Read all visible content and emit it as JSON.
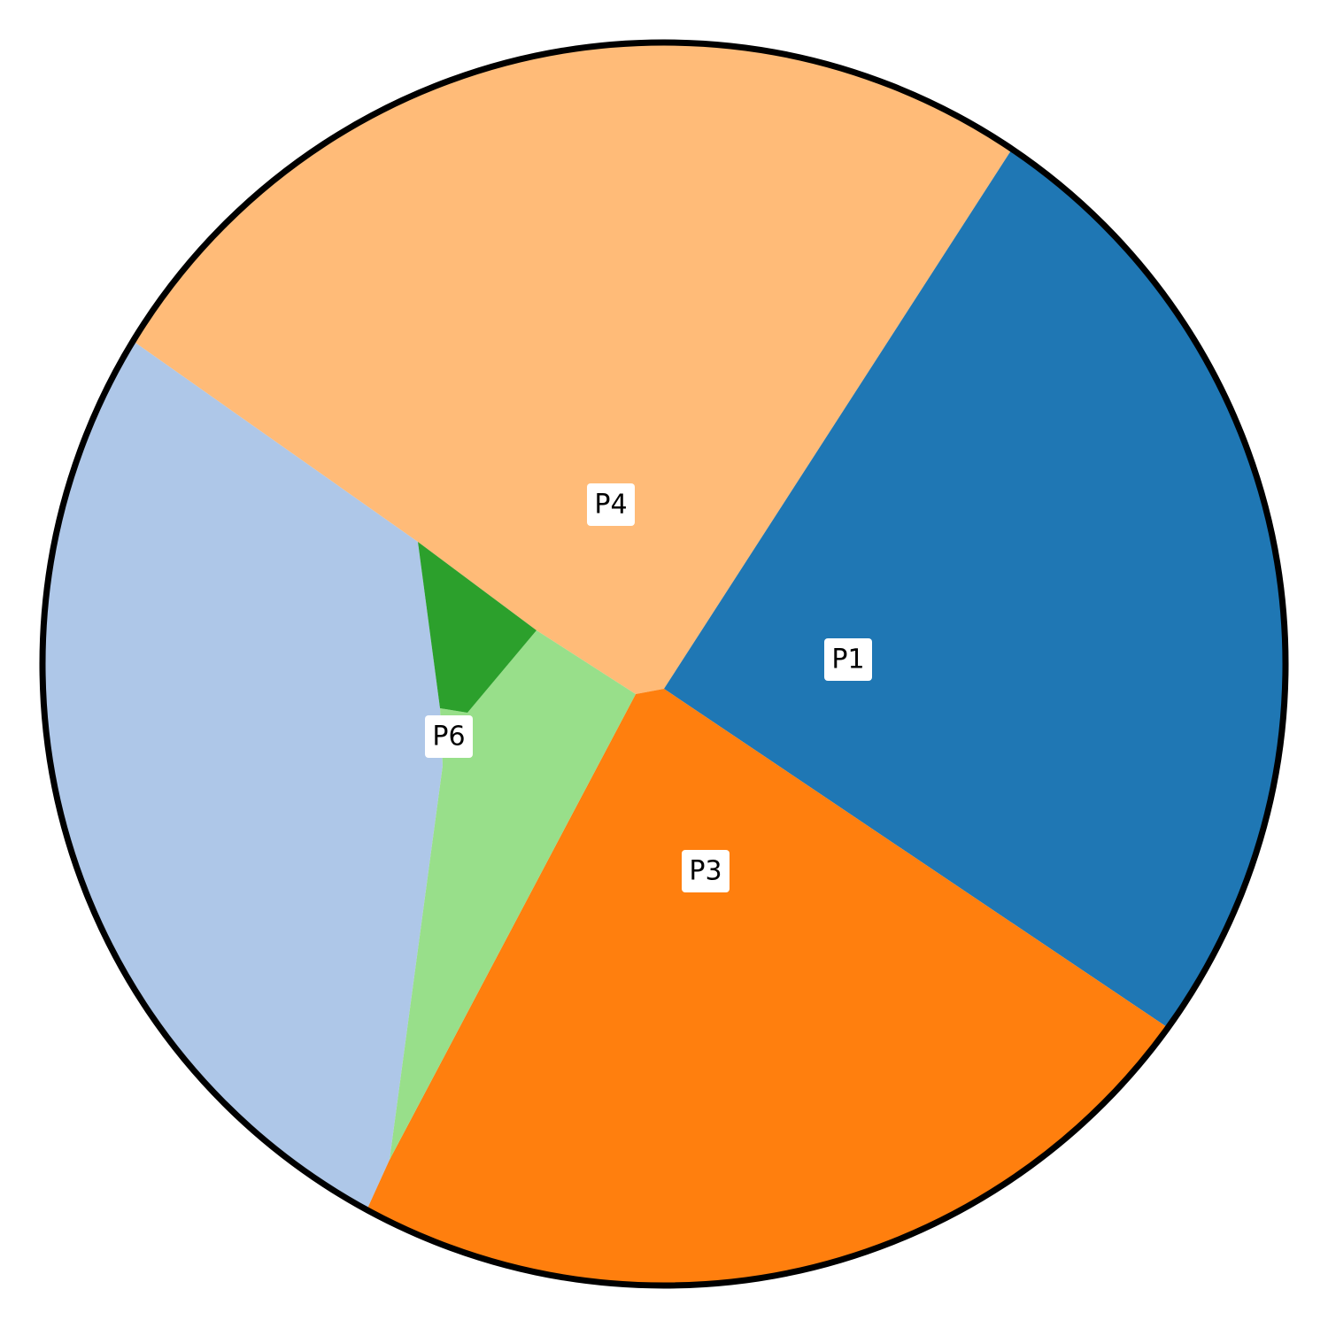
{
  "diagram": {
    "boundary_color": "#000000",
    "regions": [
      {
        "id": "P1",
        "label": "P1",
        "color": "#1f77b4"
      },
      {
        "id": "P2",
        "label": "",
        "color": "#aec7e8"
      },
      {
        "id": "P3",
        "label": "P3",
        "color": "#ff7f0e"
      },
      {
        "id": "P4",
        "label": "P4",
        "color": "#ffbb78"
      },
      {
        "id": "P5",
        "label": "",
        "color": "#98df8a"
      },
      {
        "id": "P6",
        "label": "P6",
        "color": "#2ca02c"
      }
    ]
  }
}
